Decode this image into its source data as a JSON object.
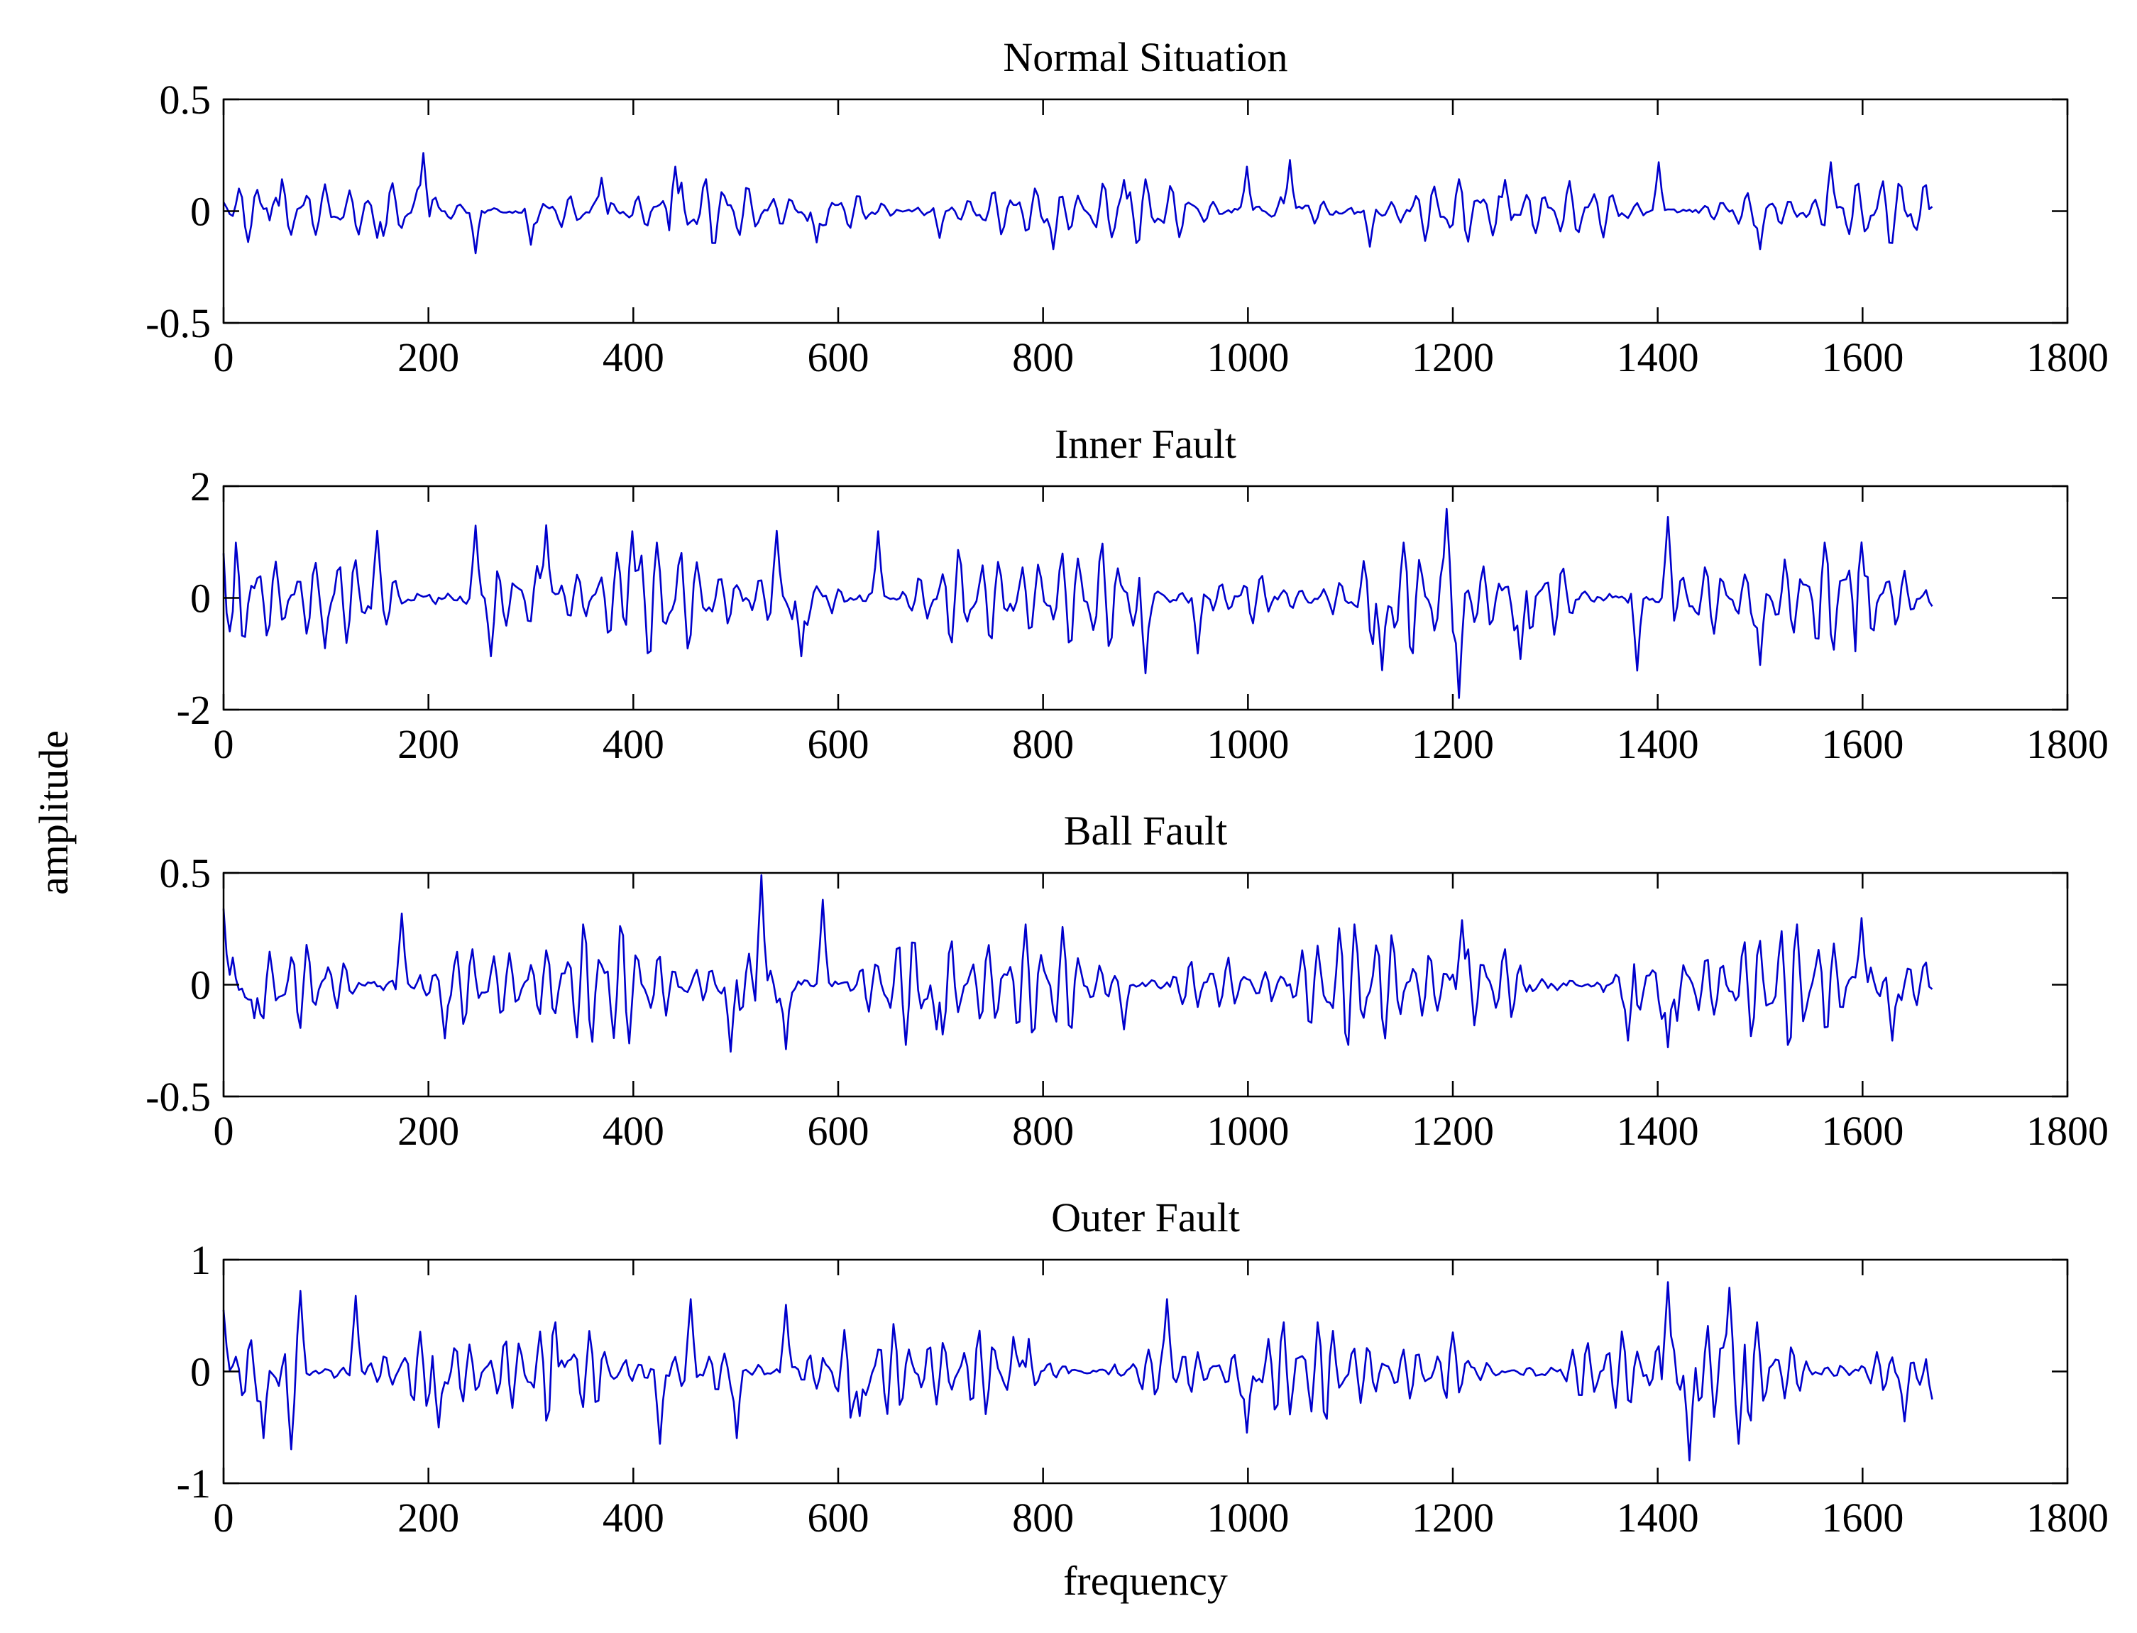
{
  "figure": {
    "ylabel": "amplitude",
    "xlabel": "frequency",
    "line_color": "#0000CC"
  },
  "chart_data": [
    {
      "type": "line",
      "title": "Normal Situation",
      "xlabel": "frequency",
      "ylabel": "amplitude",
      "xlim": [
        0,
        1800
      ],
      "ylim": [
        -0.5,
        0.5
      ],
      "xticks": [
        0,
        200,
        400,
        600,
        800,
        1000,
        1200,
        1400,
        1600,
        1800
      ],
      "yticks": [
        -0.5,
        0,
        0.5
      ],
      "ytick_labels": [
        "-0.5",
        "0",
        "0.5"
      ],
      "series": [
        {
          "name": "Normal Situation",
          "x_end": 1668,
          "x_step": 3,
          "peaks": [
            [
              0,
              0.04
            ],
            [
              50,
              0.06
            ],
            [
              100,
              0.12
            ],
            [
              150,
              -0.12
            ],
            [
              195,
              0.26
            ],
            [
              245,
              -0.19
            ],
            [
              300,
              -0.15
            ],
            [
              370,
              0.15
            ],
            [
              440,
              0.2
            ],
            [
              580,
              -0.14
            ],
            [
              700,
              -0.12
            ],
            [
              810,
              -0.17
            ],
            [
              880,
              0.14
            ],
            [
              1000,
              0.2
            ],
            [
              1040,
              0.23
            ],
            [
              1120,
              -0.16
            ],
            [
              1250,
              0.14
            ],
            [
              1400,
              0.22
            ],
            [
              1500,
              -0.17
            ],
            [
              1570,
              0.22
            ],
            [
              1668,
              0.02
            ]
          ]
        }
      ]
    },
    {
      "type": "line",
      "title": "Inner Fault",
      "xlabel": "frequency",
      "ylabel": "amplitude",
      "xlim": [
        0,
        1800
      ],
      "ylim": [
        -2,
        2
      ],
      "xticks": [
        0,
        200,
        400,
        600,
        800,
        1000,
        1200,
        1400,
        1600,
        1800
      ],
      "yticks": [
        -2,
        0,
        2
      ],
      "ytick_labels": [
        "-2",
        "0",
        "2"
      ],
      "series": [
        {
          "name": "Inner Fault",
          "x_end": 1668,
          "x_step": 3,
          "peaks": [
            [
              0,
              0.8
            ],
            [
              5,
              -0.6
            ],
            [
              100,
              -0.9
            ],
            [
              150,
              1.2
            ],
            [
              245,
              1.3
            ],
            [
              260,
              -1.05
            ],
            [
              315,
              1.3
            ],
            [
              400,
              1.2
            ],
            [
              540,
              1.2
            ],
            [
              565,
              -1.05
            ],
            [
              640,
              1.2
            ],
            [
              900,
              -1.35
            ],
            [
              950,
              -1.0
            ],
            [
              1130,
              -1.3
            ],
            [
              1195,
              1.6
            ],
            [
              1205,
              -1.8
            ],
            [
              1265,
              -1.1
            ],
            [
              1380,
              -1.3
            ],
            [
              1410,
              1.45
            ],
            [
              1500,
              -1.2
            ],
            [
              1600,
              1.0
            ],
            [
              1668,
              -0.15
            ]
          ]
        }
      ]
    },
    {
      "type": "line",
      "title": "Ball Fault",
      "xlabel": "frequency",
      "ylabel": "amplitude",
      "xlim": [
        0,
        1800
      ],
      "ylim": [
        -0.5,
        0.5
      ],
      "xticks": [
        0,
        200,
        400,
        600,
        800,
        1000,
        1200,
        1400,
        1600,
        1800
      ],
      "yticks": [
        -0.5,
        0,
        0.5
      ],
      "ytick_labels": [
        "-0.5",
        "0",
        "0.5"
      ],
      "series": [
        {
          "name": "Ball Fault",
          "x_end": 1668,
          "x_step": 3,
          "peaks": [
            [
              0,
              0.34
            ],
            [
              30,
              -0.15
            ],
            [
              175,
              0.32
            ],
            [
              215,
              -0.24
            ],
            [
              495,
              -0.3
            ],
            [
              525,
              0.49
            ],
            [
              550,
              -0.29
            ],
            [
              585,
              0.38
            ],
            [
              695,
              -0.2
            ],
            [
              880,
              -0.2
            ],
            [
              1210,
              0.29
            ],
            [
              1370,
              -0.25
            ],
            [
              1410,
              -0.28
            ],
            [
              1600,
              0.3
            ],
            [
              1630,
              -0.25
            ],
            [
              1665,
              0.22
            ],
            [
              1668,
              -0.02
            ]
          ]
        }
      ]
    },
    {
      "type": "line",
      "title": "Outer Fault",
      "xlabel": "frequency",
      "ylabel": "amplitude",
      "xlim": [
        0,
        1800
      ],
      "ylim": [
        -1,
        1
      ],
      "xticks": [
        0,
        200,
        400,
        600,
        800,
        1000,
        1200,
        1400,
        1600,
        1800
      ],
      "yticks": [
        -1,
        0,
        1
      ],
      "ytick_labels": [
        "-1",
        "0",
        "1"
      ],
      "series": [
        {
          "name": "Outer Fault",
          "x_end": 1668,
          "x_step": 3,
          "peaks": [
            [
              0,
              0.55
            ],
            [
              40,
              -0.6
            ],
            [
              65,
              -0.7
            ],
            [
              75,
              0.72
            ],
            [
              130,
              0.68
            ],
            [
              210,
              -0.5
            ],
            [
              330,
              0.1
            ],
            [
              425,
              -0.65
            ],
            [
              455,
              0.65
            ],
            [
              500,
              -0.6
            ],
            [
              550,
              0.6
            ],
            [
              620,
              -0.4
            ],
            [
              780,
              0.1
            ],
            [
              920,
              0.65
            ],
            [
              1000,
              -0.55
            ],
            [
              1200,
              0.35
            ],
            [
              1410,
              0.8
            ],
            [
              1430,
              -0.8
            ],
            [
              1470,
              0.75
            ],
            [
              1480,
              -0.65
            ],
            [
              1640,
              -0.45
            ],
            [
              1668,
              -0.25
            ]
          ]
        }
      ]
    }
  ]
}
